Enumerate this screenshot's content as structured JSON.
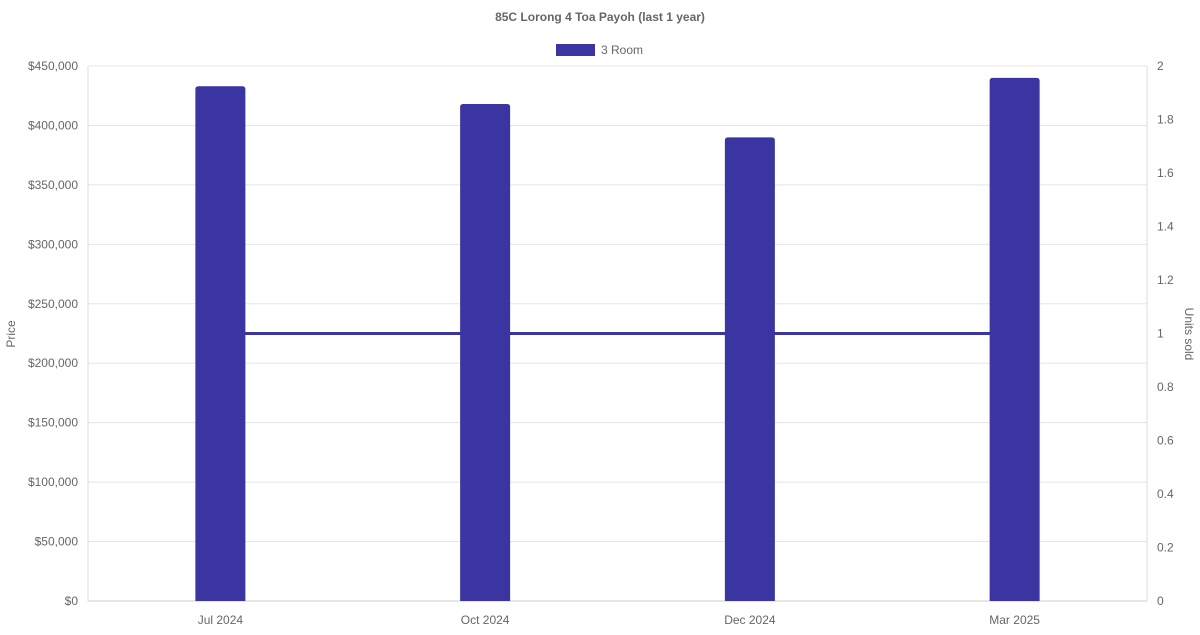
{
  "chart_data": {
    "type": "bar",
    "title": "85C Lorong 4 Toa Payoh (last 1 year)",
    "categories": [
      "Jul 2024",
      "Oct 2024",
      "Dec 2024",
      "Mar 2025"
    ],
    "series": [
      {
        "name": "3 Room",
        "type": "bar",
        "axis": "left",
        "values": [
          433000,
          418000,
          390000,
          440000
        ]
      },
      {
        "type": "line",
        "axis": "right",
        "values": [
          1,
          1,
          1,
          1
        ]
      }
    ],
    "ylabel": "Price",
    "y2label": "Units sold",
    "ylim": [
      0,
      450000
    ],
    "y2lim": [
      0,
      2
    ],
    "yticks": [
      "$0",
      "$50,000",
      "$100,000",
      "$150,000",
      "$200,000",
      "$250,000",
      "$300,000",
      "$350,000",
      "$400,000",
      "$450,000"
    ],
    "y2ticks": [
      "0",
      "0.2",
      "0.4",
      "0.6",
      "0.8",
      "1",
      "1.2",
      "1.4",
      "1.6",
      "1.8",
      "2"
    ],
    "grid": true,
    "legend": "top",
    "colors": {
      "bar": "#3a35a0",
      "line": "#3a35a0",
      "grid": "#e5e5e5",
      "text": "#666666"
    }
  }
}
